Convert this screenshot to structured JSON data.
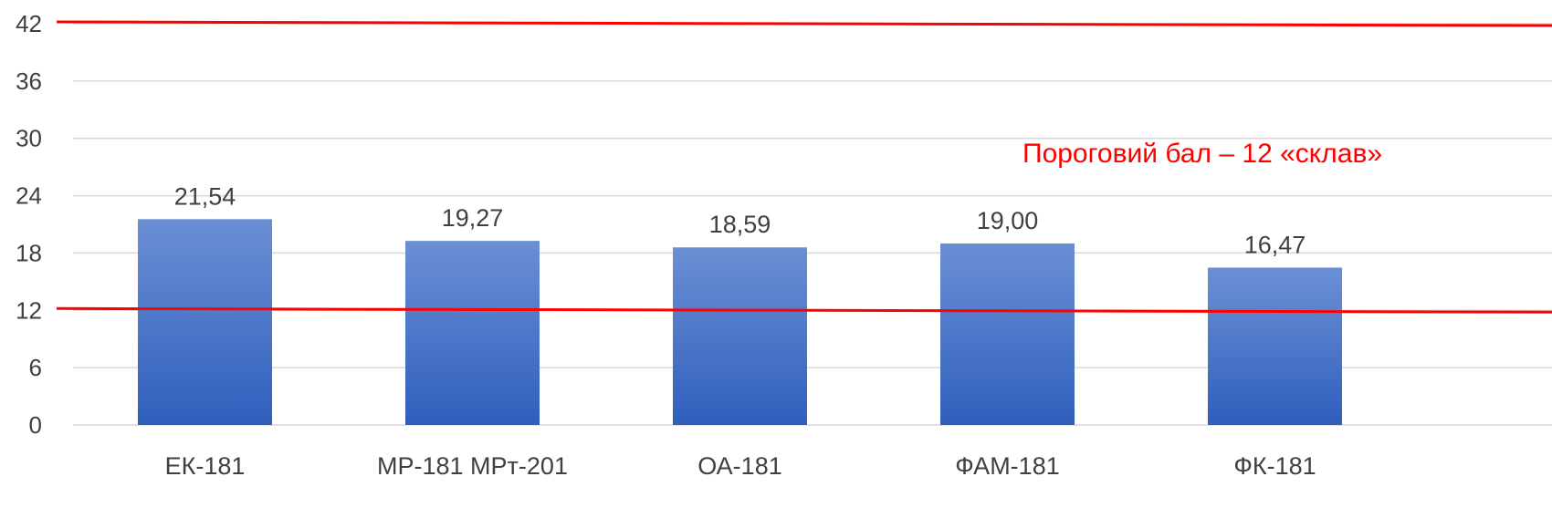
{
  "chart_data": {
    "type": "bar",
    "categories": [
      "ЕК-181",
      "МР-181 МРт-201",
      "ОА-181",
      "ФАМ-181",
      "ФК-181"
    ],
    "values": [
      21.54,
      19.27,
      18.59,
      19.0,
      16.47
    ],
    "value_labels": [
      "21,54",
      "19,27",
      "18,59",
      "19,00",
      "16,47"
    ],
    "y_ticks": [
      0,
      6,
      12,
      18,
      24,
      30,
      36,
      42
    ],
    "ylim": [
      0,
      42
    ],
    "grid": true,
    "reference_lines": [
      {
        "value": 42,
        "color": "#ff0000"
      },
      {
        "value": 12,
        "color": "#ff0000"
      }
    ],
    "annotation": "Пороговий бал – 12 «склав»",
    "colors": {
      "bar_top": "#6b8fd4",
      "bar_bottom": "#2f5fbd",
      "reference": "#ff0000",
      "grid": "#d9d9d9",
      "text": "#404040"
    }
  }
}
